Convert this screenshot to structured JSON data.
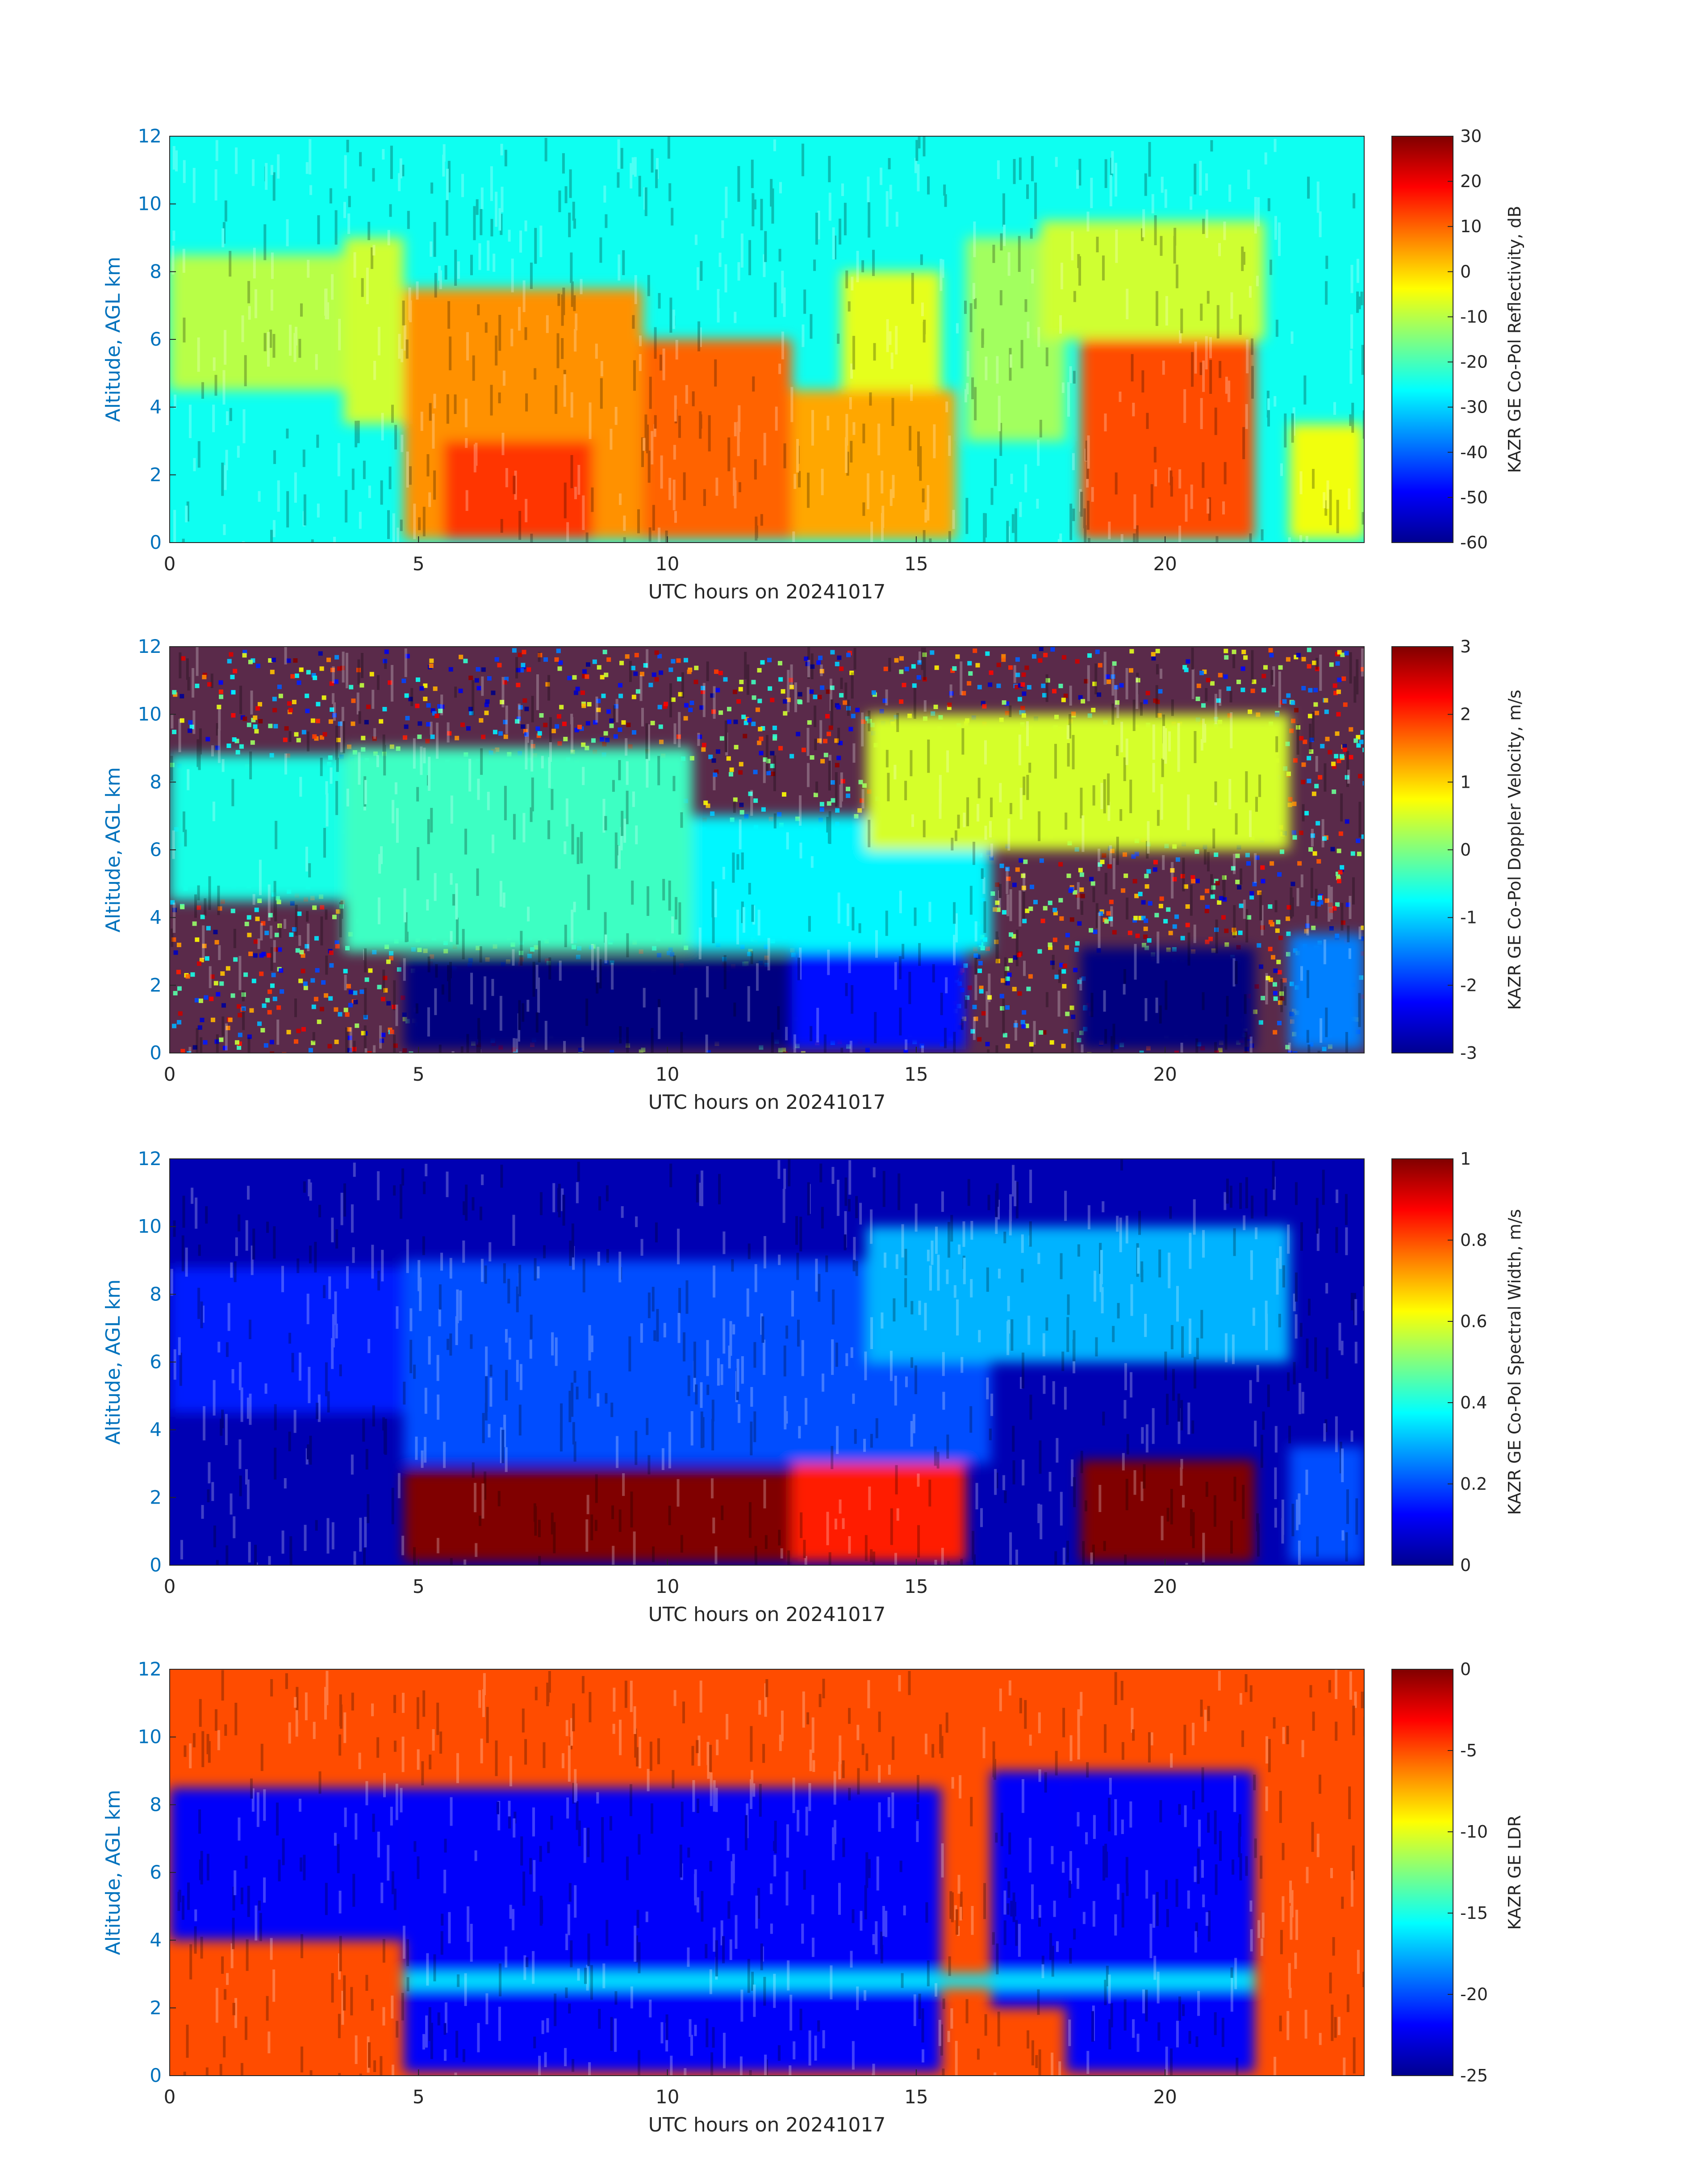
{
  "figure": {
    "panels": [
      {
        "name": "reflectivity",
        "ylabel": "Altitude, AGL km",
        "xlabel": "UTC hours on 20241017",
        "colorbar_label": "KAZR GE Co-Pol Reflectivity, dB",
        "colorbar_ticks": [
          "30",
          "20",
          "10",
          "0",
          "-10",
          "-20",
          "-30",
          "-40",
          "-50",
          "-60"
        ]
      },
      {
        "name": "velocity",
        "ylabel": "Altitude, AGL km",
        "xlabel": "UTC hours on 20241017",
        "colorbar_label": "KAZR GE Co-Pol Doppler Velocity, m/s",
        "colorbar_ticks": [
          "3",
          "2",
          "1",
          "0",
          "-1",
          "-2",
          "-3"
        ]
      },
      {
        "name": "spectral-width",
        "ylabel": "Altitude, AGL km",
        "xlabel": "UTC hours on 20241017",
        "colorbar_label": "KAZR GE Co-Pol Spectral Width, m/s",
        "colorbar_ticks": [
          "1",
          "0.8",
          "0.6",
          "0.4",
          "0.2",
          "0"
        ]
      },
      {
        "name": "ldr",
        "ylabel": "Altitude, AGL km",
        "xlabel": "UTC hours on 20241017",
        "colorbar_label": "KAZR GE LDR",
        "colorbar_ticks": [
          "0",
          "-5",
          "-10",
          "-15",
          "-20",
          "-25"
        ]
      }
    ]
  },
  "chart_data": [
    {
      "type": "heatmap",
      "xlabel": "UTC hours on 20241017",
      "ylabel": "Altitude, AGL km",
      "xlim": [
        0,
        24
      ],
      "ylim": [
        0,
        12
      ],
      "x_ticks": [
        0,
        5,
        10,
        15,
        20
      ],
      "y_ticks": [
        0,
        2,
        4,
        6,
        8,
        10,
        12
      ],
      "colorbar": {
        "label": "KAZR GE Co-Pol Reflectivity, dB",
        "min": -60,
        "max": 30,
        "ticks": [
          30,
          20,
          10,
          0,
          -10,
          -20,
          -30,
          -40,
          -50,
          -60
        ]
      },
      "colormap": "jet",
      "background_value": -25,
      "field": [
        {
          "x0": 0,
          "x1": 3.5,
          "y0": 4.5,
          "y1": 8.5,
          "value": -10
        },
        {
          "x0": 3.5,
          "x1": 4.7,
          "y0": 3.5,
          "y1": 9.0,
          "value": -8
        },
        {
          "x0": 4.7,
          "x1": 9.5,
          "y0": 0.1,
          "y1": 7.5,
          "value": 6
        },
        {
          "x0": 5.5,
          "x1": 8.5,
          "y0": 0.1,
          "y1": 3.0,
          "value": 14
        },
        {
          "x0": 9.5,
          "x1": 12.5,
          "y0": 0.1,
          "y1": 6.0,
          "value": 10
        },
        {
          "x0": 12.5,
          "x1": 15.8,
          "y0": 0.1,
          "y1": 4.5,
          "value": 4
        },
        {
          "x0": 13.5,
          "x1": 15.5,
          "y0": 4.5,
          "y1": 8.0,
          "value": -6
        },
        {
          "x0": 16.0,
          "x1": 18.0,
          "y0": 3.0,
          "y1": 9.0,
          "value": -12
        },
        {
          "x0": 17.5,
          "x1": 22.0,
          "y0": 6.0,
          "y1": 9.5,
          "value": -8
        },
        {
          "x0": 18.3,
          "x1": 21.8,
          "y0": 0.1,
          "y1": 6.0,
          "value": 12
        },
        {
          "x0": 22.5,
          "x1": 24.0,
          "y0": 0.1,
          "y1": 3.5,
          "value": -5
        }
      ]
    },
    {
      "type": "heatmap",
      "xlabel": "UTC hours on 20241017",
      "ylabel": "Altitude, AGL km",
      "xlim": [
        0,
        24
      ],
      "ylim": [
        0,
        12
      ],
      "x_ticks": [
        0,
        5,
        10,
        15,
        20
      ],
      "y_ticks": [
        0,
        2,
        4,
        6,
        8,
        10,
        12
      ],
      "colorbar": {
        "label": "KAZR GE Co-Pol Doppler Velocity, m/s",
        "min": -3,
        "max": 3,
        "ticks": [
          3,
          2,
          1,
          0,
          -1,
          -2,
          -3
        ]
      },
      "colormap": "jet",
      "background_value": "noise",
      "field": [
        {
          "x0": 0,
          "x1": 3.5,
          "y0": 4.5,
          "y1": 8.8,
          "value": -0.6
        },
        {
          "x0": 3.5,
          "x1": 10.5,
          "y0": 3.0,
          "y1": 9.0,
          "value": -0.4
        },
        {
          "x0": 4.7,
          "x1": 12.5,
          "y0": 0.1,
          "y1": 2.8,
          "value": -3.0
        },
        {
          "x0": 10.5,
          "x1": 16.5,
          "y0": 3.0,
          "y1": 7.0,
          "value": -0.8
        },
        {
          "x0": 12.5,
          "x1": 16.0,
          "y0": 0.1,
          "y1": 3.0,
          "value": -2.2
        },
        {
          "x0": 14.0,
          "x1": 22.5,
          "y0": 6.0,
          "y1": 10.0,
          "value": 0.5
        },
        {
          "x0": 18.3,
          "x1": 21.8,
          "y0": 0.1,
          "y1": 3.1,
          "value": -3.0
        },
        {
          "x0": 22.5,
          "x1": 24.0,
          "y0": 0.1,
          "y1": 3.5,
          "value": -1.5
        }
      ]
    },
    {
      "type": "heatmap",
      "xlabel": "UTC hours on 20241017",
      "ylabel": "Altitude, AGL km",
      "xlim": [
        0,
        24
      ],
      "ylim": [
        0,
        12
      ],
      "x_ticks": [
        0,
        5,
        10,
        15,
        20
      ],
      "y_ticks": [
        0,
        2,
        4,
        6,
        8,
        10,
        12
      ],
      "colorbar": {
        "label": "KAZR GE Co-Pol Spectral Width, m/s",
        "min": 0,
        "max": 1,
        "ticks": [
          1,
          0.8,
          0.6,
          0.4,
          0.2,
          0
        ]
      },
      "colormap": "jet",
      "background_value": 0.05,
      "field": [
        {
          "x0": 0,
          "x1": 4.7,
          "y0": 4.5,
          "y1": 8.8,
          "value": 0.15
        },
        {
          "x0": 4.7,
          "x1": 16.5,
          "y0": 3.0,
          "y1": 9.0,
          "value": 0.2
        },
        {
          "x0": 4.7,
          "x1": 12.5,
          "y0": 0.1,
          "y1": 2.8,
          "value": 1.0
        },
        {
          "x0": 12.5,
          "x1": 16.0,
          "y0": 0.1,
          "y1": 3.0,
          "value": 0.85
        },
        {
          "x0": 14.0,
          "x1": 22.5,
          "y0": 6.0,
          "y1": 10.0,
          "value": 0.3
        },
        {
          "x0": 18.3,
          "x1": 21.8,
          "y0": 0.1,
          "y1": 3.1,
          "value": 1.0
        },
        {
          "x0": 22.5,
          "x1": 24.0,
          "y0": 0.1,
          "y1": 3.5,
          "value": 0.2
        }
      ]
    },
    {
      "type": "heatmap",
      "xlabel": "UTC hours on 20241017",
      "ylabel": "Altitude, AGL km",
      "xlim": [
        0,
        24
      ],
      "ylim": [
        0,
        12
      ],
      "x_ticks": [
        0,
        5,
        10,
        15,
        20
      ],
      "y_ticks": [
        0,
        2,
        4,
        6,
        8,
        10,
        12
      ],
      "colorbar": {
        "label": "KAZR GE LDR",
        "min": -25,
        "max": 0,
        "ticks": [
          0,
          -5,
          -10,
          -15,
          -20,
          -25
        ]
      },
      "colormap": "jet",
      "background_value": -5,
      "field": [
        {
          "x0": 0,
          "x1": 4.7,
          "y0": 4.0,
          "y1": 8.5,
          "value": -22
        },
        {
          "x0": 4.7,
          "x1": 15.5,
          "y0": 0.1,
          "y1": 8.5,
          "value": -22
        },
        {
          "x0": 16.5,
          "x1": 18.0,
          "y0": 2.0,
          "y1": 9.0,
          "value": -22
        },
        {
          "x0": 18.0,
          "x1": 21.8,
          "y0": 0.1,
          "y1": 9.0,
          "value": -22
        },
        {
          "x0": 4.7,
          "x1": 21.8,
          "y0": 2.6,
          "y1": 3.0,
          "value": -16
        }
      ]
    }
  ]
}
